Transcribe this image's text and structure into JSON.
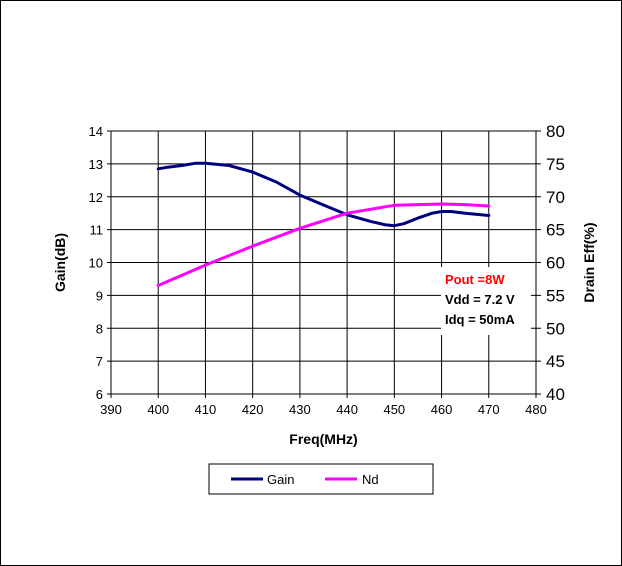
{
  "chart_data": {
    "type": "line",
    "xlabel": "Freq(MHz)",
    "ylabel": "Gain(dB)",
    "y2label": "Drain Eff(%)",
    "xlim": [
      390,
      480
    ],
    "ylim": [
      6,
      14
    ],
    "y2lim": [
      40,
      80
    ],
    "xticks": [
      390,
      400,
      410,
      420,
      430,
      440,
      450,
      460,
      470,
      480
    ],
    "yticks": [
      6,
      7,
      8,
      9,
      10,
      11,
      12,
      13,
      14
    ],
    "y2ticks": [
      40,
      45,
      50,
      55,
      60,
      65,
      70,
      75,
      80
    ],
    "grid": true,
    "legend_position": "bottom",
    "series": [
      {
        "name": "Gain",
        "axis": "left",
        "color": "#000080",
        "x": [
          400,
          402,
          405,
          408,
          410,
          415,
          420,
          425,
          430,
          435,
          440,
          445,
          448,
          450,
          452,
          455,
          458,
          460,
          462,
          465,
          470
        ],
        "y": [
          12.85,
          12.9,
          12.95,
          13.02,
          13.02,
          12.95,
          12.75,
          12.45,
          12.05,
          11.75,
          11.45,
          11.25,
          11.15,
          11.12,
          11.18,
          11.35,
          11.5,
          11.55,
          11.55,
          11.5,
          11.43
        ]
      },
      {
        "name": "Nd",
        "axis": "right",
        "color": "#FF00FF",
        "x": [
          400,
          410,
          420,
          430,
          440,
          450,
          460,
          465,
          470
        ],
        "y": [
          56.5,
          59.6,
          62.5,
          65.2,
          67.5,
          68.7,
          68.9,
          68.8,
          68.6
        ]
      }
    ],
    "annotations": [
      {
        "text": "Pout =8W",
        "color": "#FF0000"
      },
      {
        "text": "Vdd = 7.2 V",
        "color": "#000000"
      },
      {
        "text": "Idq = 50mA",
        "color": "#000000"
      }
    ]
  }
}
